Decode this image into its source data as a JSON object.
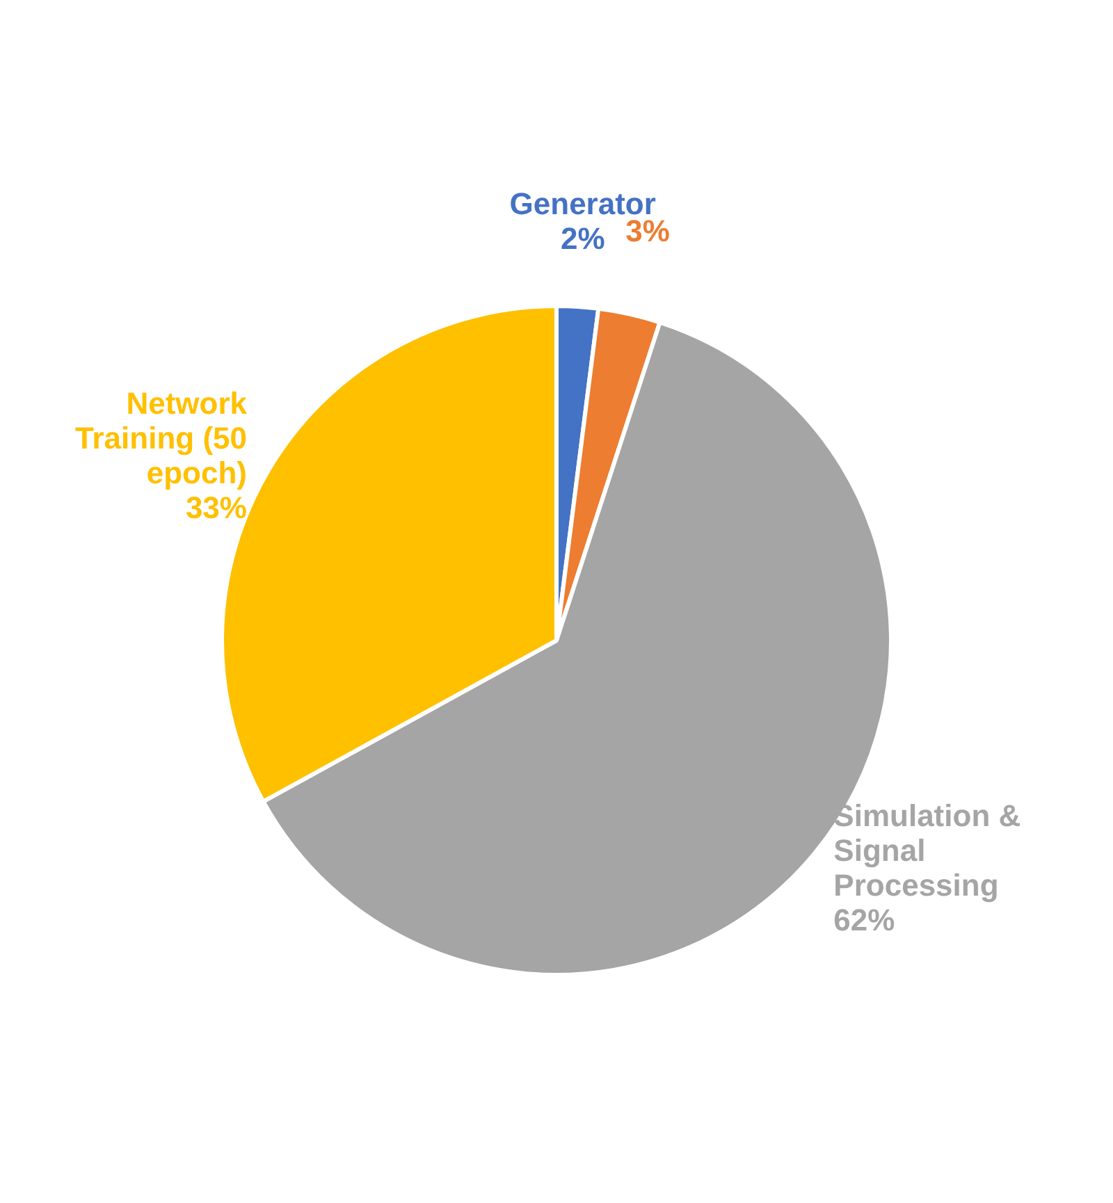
{
  "chart_data": {
    "type": "pie",
    "categories": [
      "Generator",
      null,
      "Simulation & Signal Processing",
      "Network Training (50 epoch)"
    ],
    "values": [
      2,
      3,
      62,
      33
    ],
    "value_labels": [
      "2%",
      "3%",
      "62%",
      "33%"
    ],
    "colors": [
      "#4472c4",
      "#ed7d31",
      "#a5a5a5",
      "#ffc000"
    ],
    "legend": false
  }
}
